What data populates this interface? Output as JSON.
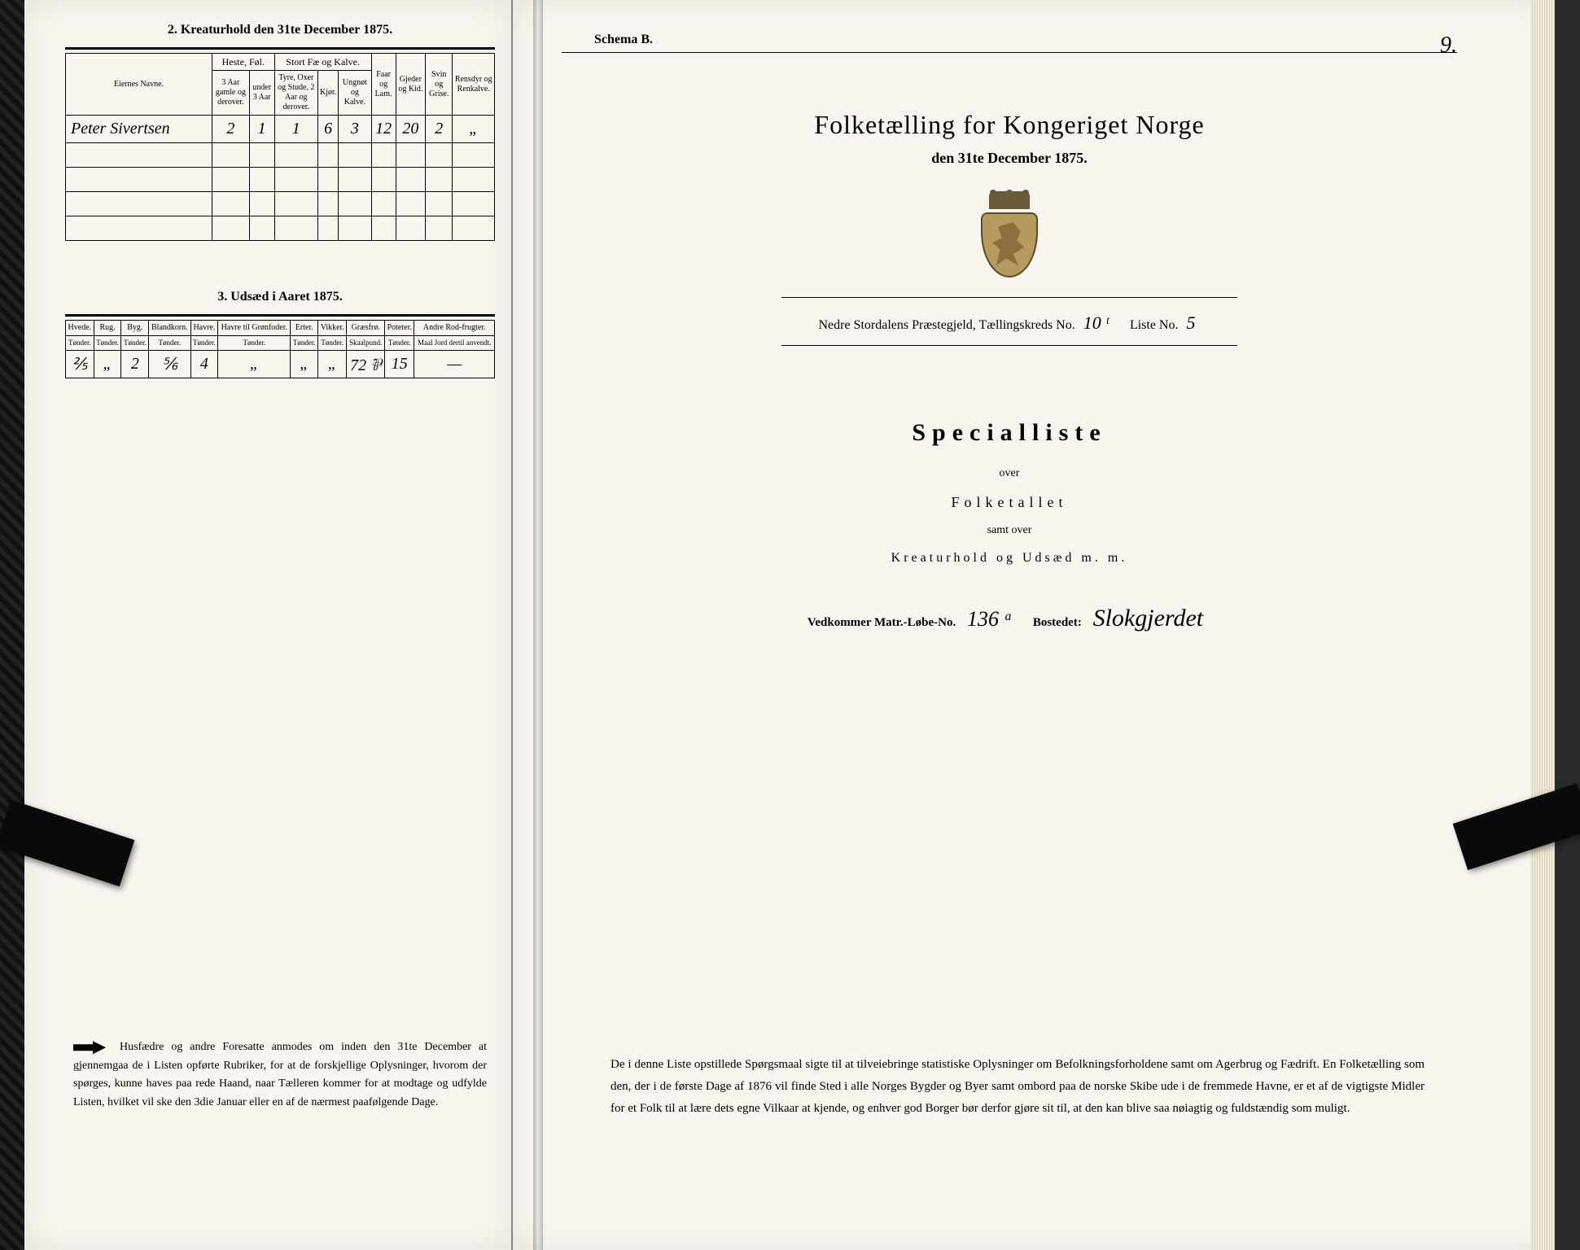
{
  "left": {
    "section2_title": "2.  Kreaturhold den 31te December 1875.",
    "section3_title": "3.  Udsæd i Aaret 1875.",
    "table2": {
      "col_owner": "Eiernes Navne.",
      "group_heste": "Heste, Føl.",
      "group_stort": "Stort Fæ og Kalve.",
      "col_heste_a": "3 Aar gamle og derover.",
      "col_heste_b": "under 3 Aar",
      "col_stort_a": "Tyre, Oxer og Stude, 2 Aar og derover.",
      "col_stort_b": "Kjør.",
      "col_stort_c": "Ungnøt og Kalve.",
      "col_faar": "Faar og Lam.",
      "col_gjeder": "Gjeder og Kid.",
      "col_svin": "Svin og Grise.",
      "col_rens": "Rensdyr og Renkalve.",
      "row": {
        "owner": "Peter Sivertsen",
        "heste_a": "2",
        "heste_b": "1",
        "stort_a": "1",
        "stort_b": "6",
        "stort_c": "3",
        "faar": "12",
        "gjeder": "20",
        "svin": "2",
        "rens": "„"
      }
    },
    "table3": {
      "cols": [
        {
          "h": "Hvede.",
          "u": "Tønder."
        },
        {
          "h": "Rug.",
          "u": "Tønder."
        },
        {
          "h": "Byg.",
          "u": "Tønder."
        },
        {
          "h": "Blandkorn.",
          "u": "Tønder."
        },
        {
          "h": "Havre.",
          "u": "Tønder."
        },
        {
          "h": "Havre til Grønfoder.",
          "u": "Tønder."
        },
        {
          "h": "Erter.",
          "u": "Tønder."
        },
        {
          "h": "Vikker.",
          "u": "Tønder."
        },
        {
          "h": "Græsfrø.",
          "u": "Skaalpund."
        },
        {
          "h": "Poteter.",
          "u": "Tønder."
        },
        {
          "h": "Andre Rod-frugter.",
          "u": "Maal Jord dertil anvendt."
        }
      ],
      "row": [
        "⅖",
        "„",
        "2",
        "⅚",
        "4",
        "„",
        "„",
        "„",
        "72 ⅌",
        "15",
        "—"
      ]
    },
    "footnote": "Husfædre og andre Foresatte anmodes om inden den 31te December at gjennemgaa de i Listen opførte Rubriker, for at de forskjellige Oplysninger, hvorom der spørges, kunne haves paa rede Haand, naar Tælleren kommer for at modtage og udfylde Listen, hvilket vil ske den 3die Januar eller en af de nærmest paafølgende Dage."
  },
  "right": {
    "schema": "Schema B.",
    "pagenum": "9.",
    "title": "Folketælling for Kongeriget Norge",
    "subtitle": "den 31te December 1875.",
    "district_prefix": "Nedre Stordalens Præstegjeld,  Tællingskreds No.",
    "district_no": "10 ᵗ",
    "liste_label": "Liste No.",
    "liste_no": "5",
    "special": "Specialliste",
    "over": "over",
    "folketallet": "Folketallet",
    "samt_over": "samt over",
    "kreatur": "Kreaturhold og Udsæd m. m.",
    "matr_label": "Vedkommer Matr.-Løbe-No.",
    "matr_no": "136 ᵃ",
    "bostedet_label": "Bostedet:",
    "bostedet": "Slokgjerdet",
    "footnote": "De i denne Liste opstillede Spørgsmaal sigte til at tilveiebringe statistiske Oplysninger om Befolkningsforholdene samt om Agerbrug og Fædrift.  En Folketælling som den, der i de første Dage af 1876 vil finde Sted i alle Norges Bygder og Byer samt ombord paa de norske Skibe ude i de fremmede Havne, er et af de vigtigste Midler for et Folk til at lære dets egne Vilkaar at kjende, og enhver god Borger bør derfor gjøre sit til, at den kan blive saa nøiagtig og fuldstændig som muligt."
  }
}
